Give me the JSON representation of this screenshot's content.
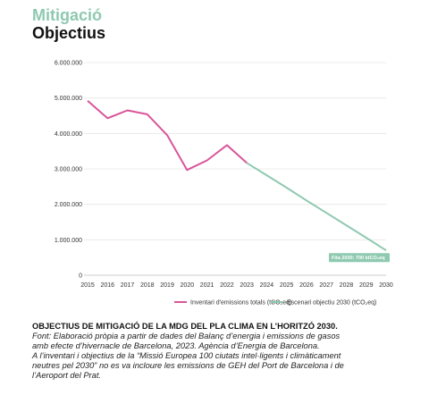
{
  "header": {
    "kicker": "Mitigació",
    "title": "Objectius"
  },
  "colors": {
    "series1": "#d9559a",
    "series2": "#8ec9b0",
    "annotation_bg": "#8ec9b0"
  },
  "chart_data": {
    "type": "line",
    "x": [
      2015,
      2016,
      2017,
      2018,
      2019,
      2020,
      2021,
      2022,
      2023,
      2024,
      2025,
      2026,
      2027,
      2028,
      2029,
      2030
    ],
    "xlim": [
      2015,
      2030
    ],
    "ylim": [
      0,
      6000000
    ],
    "yticks": [
      0,
      1000000,
      2000000,
      3000000,
      4000000,
      5000000,
      6000000
    ],
    "ytick_labels": [
      "0",
      "1.000.000",
      "2.000.000",
      "3.000.000",
      "4.000.000",
      "5.000.000",
      "6.000.000"
    ],
    "grid": "horizontal",
    "legend_position": "bottom",
    "series": [
      {
        "name": "Inventari d'emissions totals (tCO₂eq)",
        "x": [
          2015,
          2016,
          2017,
          2018,
          2019,
          2020,
          2021,
          2022,
          2023
        ],
        "values": [
          4920000,
          4430000,
          4650000,
          4540000,
          3950000,
          2970000,
          3240000,
          3670000,
          3170000
        ]
      },
      {
        "name": "Escenari objectiu 2030 (tCO₂eq)",
        "x": [
          2023,
          2024,
          2025,
          2026,
          2027,
          2028,
          2029,
          2030
        ],
        "values": [
          3170000,
          2820000,
          2470000,
          2110000,
          1760000,
          1410000,
          1060000,
          700000
        ]
      }
    ],
    "annotation": {
      "text": "Fita 2030: 700 ktCO₂eq",
      "x": 2030,
      "y": 700000
    }
  },
  "caption": {
    "heading": "OBJECTIUS DE MITIGACIÓ DE LA MDG DEL PLA CLIMA EN L’HORITZÓ 2030.",
    "lines": [
      "Font: Elaboració pròpia a partir de dades del Balanç d’energia i emissions de gasos",
      "amb efecte d’hivernacle de Barcelona, 2023. Agència d’Energia de Barcelona.",
      "A l’inventari i objectius de la “Missió Europea 100 ciutats intel·ligents i climàticament",
      "neutres pel 2030” no es va incloure les emissions de GEH del Port de Barcelona i de",
      "l’Aeroport del Prat."
    ]
  }
}
